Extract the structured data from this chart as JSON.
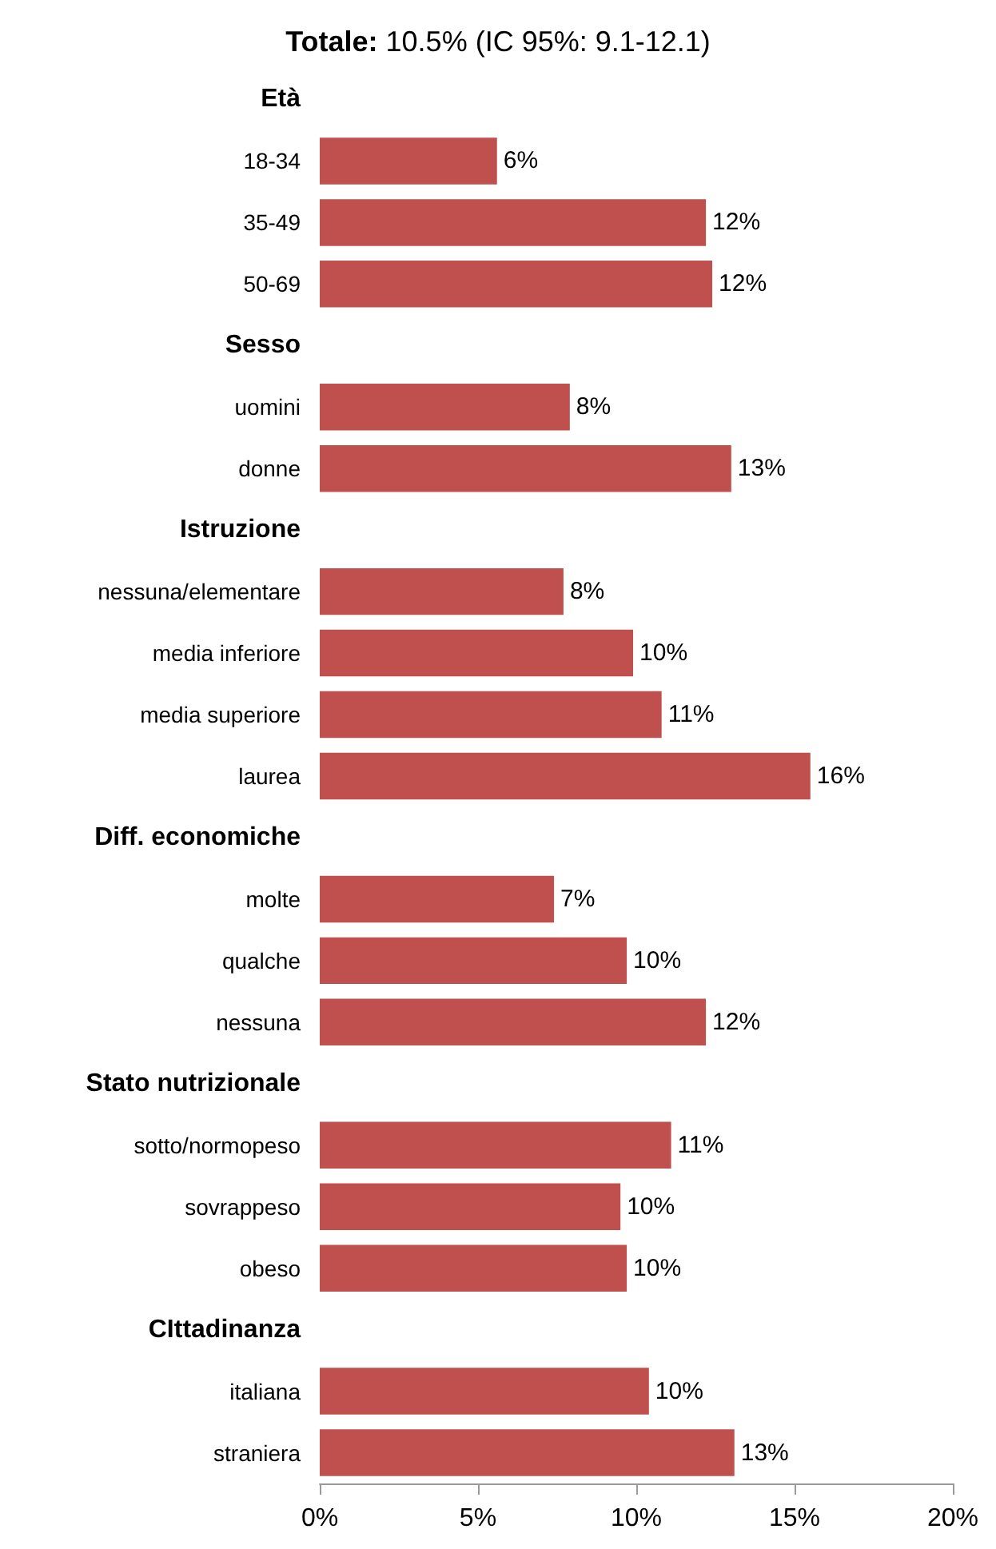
{
  "chart_data": {
    "type": "bar",
    "orientation": "horizontal",
    "title": "Totale: 10.5% (IC 95%: 9.1-12.1)",
    "categories": [
      "Età",
      "18-34",
      "35-49",
      "50-69",
      "Sesso",
      "uomini",
      "donne",
      "Istruzione",
      "nessuna/elementare",
      "media inferiore",
      "media superiore",
      "laurea",
      "Diff. economiche",
      "molte",
      "qualche",
      "nessuna",
      "Stato nutrizionale",
      "sotto/normopeso",
      "sovrappeso",
      "obeso",
      "CIttadinanza",
      "italiana",
      "straniera"
    ],
    "values": [
      null,
      5.6,
      12.2,
      12.4,
      null,
      7.9,
      13.0,
      null,
      7.7,
      9.9,
      10.8,
      15.5,
      null,
      7.4,
      9.7,
      12.2,
      null,
      11.1,
      9.5,
      9.7,
      null,
      10.4,
      13.1
    ],
    "value_labels": [
      null,
      "6%",
      "12%",
      "12%",
      null,
      "8%",
      "13%",
      null,
      "8%",
      "10%",
      "11%",
      "16%",
      null,
      "7%",
      "10%",
      "12%",
      null,
      "11%",
      "10%",
      "10%",
      null,
      "10%",
      "13%"
    ],
    "color": "#c0504d",
    "xlim": [
      0,
      20
    ],
    "xticks": [
      {
        "value": 0,
        "label": "0%"
      },
      {
        "value": 5,
        "label": "5%"
      },
      {
        "value": 10,
        "label": "10%"
      },
      {
        "value": 15,
        "label": "15%"
      },
      {
        "value": 20,
        "label": "20%"
      }
    ],
    "grid": false
  }
}
